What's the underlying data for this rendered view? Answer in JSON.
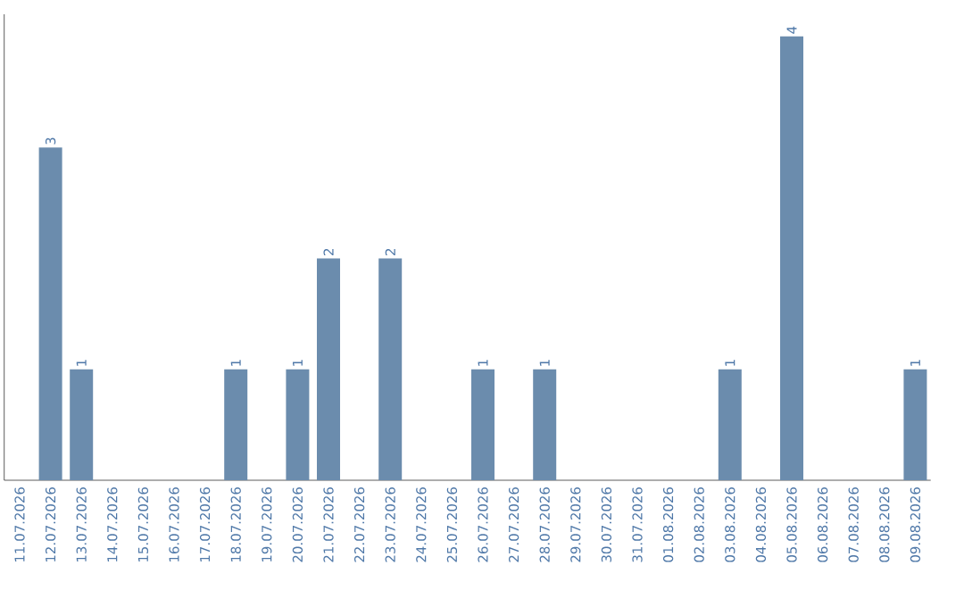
{
  "chart_data": {
    "type": "bar",
    "color": "#6b8cad",
    "categories": [
      "11.07.2026",
      "12.07.2026",
      "13.07.2026",
      "14.07.2026",
      "15.07.2026",
      "16.07.2026",
      "17.07.2026",
      "18.07.2026",
      "19.07.2026",
      "20.07.2026",
      "21.07.2026",
      "22.07.2026",
      "23.07.2026",
      "24.07.2026",
      "25.07.2026",
      "26.07.2026",
      "27.07.2026",
      "28.07.2026",
      "29.07.2026",
      "30.07.2026",
      "31.07.2026",
      "01.08.2026",
      "02.08.2026",
      "03.08.2026",
      "04.08.2026",
      "05.08.2026",
      "06.08.2026",
      "07.08.2026",
      "08.08.2026",
      "09.08.2026"
    ],
    "values": [
      0,
      3,
      1,
      0,
      0,
      0,
      0,
      1,
      0,
      1,
      2,
      0,
      2,
      0,
      0,
      1,
      0,
      1,
      0,
      0,
      0,
      0,
      0,
      1,
      0,
      4,
      0,
      0,
      0,
      1
    ],
    "value_labels": [
      null,
      "3",
      "1",
      null,
      null,
      null,
      null,
      "1",
      null,
      "1",
      "2",
      null,
      "2",
      null,
      null,
      "1",
      null,
      "1",
      null,
      null,
      null,
      null,
      null,
      "1",
      null,
      "4",
      null,
      null,
      null,
      "1"
    ]
  }
}
